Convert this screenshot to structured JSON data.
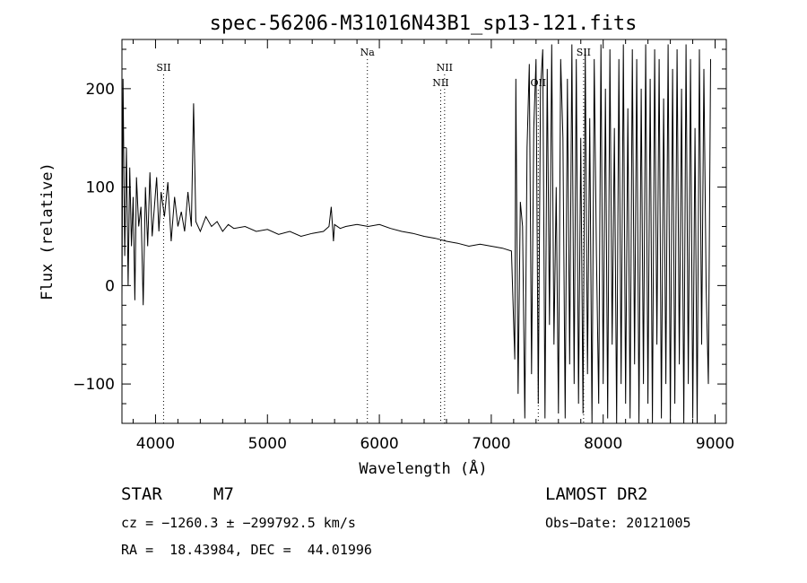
{
  "chart_data": {
    "type": "line",
    "title": "spec-56206-M31016N43B1_sp13-121.fits",
    "xlabel": "Wavelength (Å)",
    "ylabel": "Flux (relative)",
    "xlim": [
      3700,
      9100
    ],
    "ylim": [
      -140,
      250
    ],
    "xticks": [
      4000,
      5000,
      6000,
      7000,
      8000,
      9000
    ],
    "yticks": [
      -100,
      0,
      100,
      200
    ],
    "grid": false,
    "series": [
      {
        "x": [
          3700,
          3710,
          3725,
          3740,
          3755,
          3770,
          3785,
          3800,
          3815,
          3830,
          3850,
          3870,
          3890,
          3910,
          3930,
          3950,
          3970,
          3990,
          4010,
          4030,
          4050,
          4080,
          4110,
          4140,
          4170,
          4200,
          4230,
          4260,
          4290,
          4320,
          4340,
          4360,
          4400,
          4450,
          4500,
          4550,
          4600,
          4650,
          4700,
          4800,
          4900,
          5000,
          5100,
          5200,
          5300,
          5400,
          5500,
          5550,
          5570,
          5590,
          5600,
          5650,
          5700,
          5800,
          5900,
          6000,
          6100,
          6200,
          6300,
          6400,
          6500,
          6600,
          6700,
          6800,
          6900,
          7000,
          7100,
          7180,
          7210,
          7220,
          7240,
          7260,
          7280,
          7300,
          7320,
          7340,
          7360,
          7380,
          7400,
          7420,
          7440,
          7460,
          7480,
          7500,
          7520,
          7540,
          7560,
          7580,
          7600,
          7620,
          7640,
          7660,
          7680,
          7700,
          7720,
          7740,
          7760,
          7780,
          7800,
          7820,
          7840,
          7860,
          7880,
          7900,
          7920,
          7940,
          7960,
          7980,
          8000,
          8020,
          8040,
          8060,
          8080,
          8100,
          8120,
          8140,
          8160,
          8180,
          8200,
          8220,
          8240,
          8260,
          8280,
          8300,
          8320,
          8340,
          8360,
          8380,
          8400,
          8420,
          8440,
          8460,
          8480,
          8500,
          8520,
          8540,
          8560,
          8580,
          8600,
          8620,
          8640,
          8660,
          8680,
          8700,
          8720,
          8740,
          8760,
          8780,
          8800,
          8820,
          8840,
          8860,
          8880,
          8900,
          8920,
          8940,
          8960
        ],
        "y": [
          -10,
          210,
          30,
          140,
          0,
          120,
          40,
          90,
          -15,
          110,
          60,
          80,
          -20,
          100,
          40,
          115,
          50,
          80,
          110,
          55,
          95,
          70,
          105,
          45,
          90,
          60,
          75,
          55,
          95,
          60,
          185,
          65,
          55,
          70,
          60,
          65,
          55,
          62,
          58,
          60,
          55,
          57,
          52,
          55,
          50,
          53,
          55,
          60,
          80,
          45,
          62,
          58,
          60,
          62,
          60,
          62,
          58,
          55,
          53,
          50,
          48,
          45,
          43,
          40,
          42,
          40,
          38,
          35,
          -75,
          210,
          -110,
          85,
          60,
          -135,
          140,
          225,
          -90,
          160,
          230,
          -120,
          200,
          240,
          -135,
          220,
          -40,
          245,
          -60,
          100,
          -130,
          230,
          150,
          -135,
          210,
          -80,
          245,
          -100,
          230,
          -120,
          150,
          -130,
          240,
          -90,
          170,
          -140,
          230,
          30,
          -120,
          245,
          -100,
          200,
          -135,
          240,
          -60,
          160,
          -140,
          230,
          -100,
          245,
          -120,
          180,
          -135,
          240,
          -80,
          230,
          -140,
          200,
          -100,
          245,
          -120,
          210,
          -140,
          240,
          -60,
          230,
          -135,
          190,
          -100,
          245,
          -140,
          220,
          -120,
          240,
          -80,
          200,
          -140,
          245,
          -100,
          230,
          -135,
          160,
          -140,
          240,
          -60,
          220,
          0,
          -100,
          230
        ]
      }
    ],
    "annotations": [
      {
        "label": "SII",
        "x": 4072,
        "row": 1
      },
      {
        "label": "Na",
        "x": 5893,
        "row": 0
      },
      {
        "label": "NII",
        "x": 6583,
        "row": 1
      },
      {
        "label": "NII",
        "x": 6548,
        "row": 2
      },
      {
        "label": "SII",
        "x": 7825,
        "row": 0
      },
      {
        "label": "OII",
        "x": 7420,
        "row": 2
      }
    ]
  },
  "info": {
    "object_type": "STAR",
    "subclass": "M7",
    "survey": "LAMOST DR2",
    "cz_line": "cz = −1260.3 ± −299792.5 km/s",
    "obs_date": "Obs−Date: 20121005",
    "coords": "RA =  18.43984, DEC =  44.01996"
  }
}
